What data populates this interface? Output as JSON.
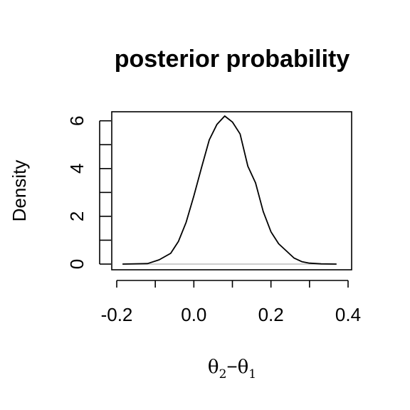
{
  "chart_data": {
    "type": "line",
    "title": "posterior probability",
    "xlabel": {
      "parts": [
        {
          "text": "θ",
          "style": "symbol"
        },
        {
          "text": "2",
          "style": "subscript"
        },
        {
          "text": "−",
          "style": "operator"
        },
        {
          "text": "θ",
          "style": "symbol"
        },
        {
          "text": "1",
          "style": "subscript"
        }
      ]
    },
    "ylabel": "Density",
    "xlim": [
      -0.2,
      0.4
    ],
    "ylim": [
      0,
      6.2
    ],
    "x_ticks": [
      -0.2,
      0.0,
      0.2,
      0.4
    ],
    "x_tick_labels": [
      "-0.2",
      "0.0",
      "0.2",
      "0.4"
    ],
    "x_minor_ticks": [
      -0.1,
      0.1,
      0.3
    ],
    "y_ticks": [
      0,
      2,
      4,
      6
    ],
    "y_tick_labels": [
      "0",
      "2",
      "4",
      "6"
    ],
    "y_minor_ticks": [
      1,
      3,
      5
    ],
    "baseline": {
      "y": 0,
      "x_range": [
        -0.185,
        0.37
      ],
      "color": "#bebebe"
    },
    "series": [
      {
        "x": [
          -0.185,
          -0.12,
          -0.09,
          -0.06,
          -0.04,
          -0.02,
          0.0,
          0.02,
          0.04,
          0.06,
          0.08,
          0.1,
          0.12,
          0.14,
          0.16,
          0.18,
          0.2,
          0.22,
          0.24,
          0.26,
          0.28,
          0.3,
          0.33,
          0.37
        ],
        "y": [
          0.0,
          0.02,
          0.18,
          0.45,
          0.95,
          1.75,
          2.85,
          4.05,
          5.2,
          5.85,
          6.2,
          5.95,
          5.45,
          4.1,
          3.4,
          2.2,
          1.35,
          0.85,
          0.55,
          0.25,
          0.1,
          0.04,
          0.01,
          0.0
        ],
        "color": "#000000"
      }
    ],
    "grid": false,
    "legend": "none"
  }
}
